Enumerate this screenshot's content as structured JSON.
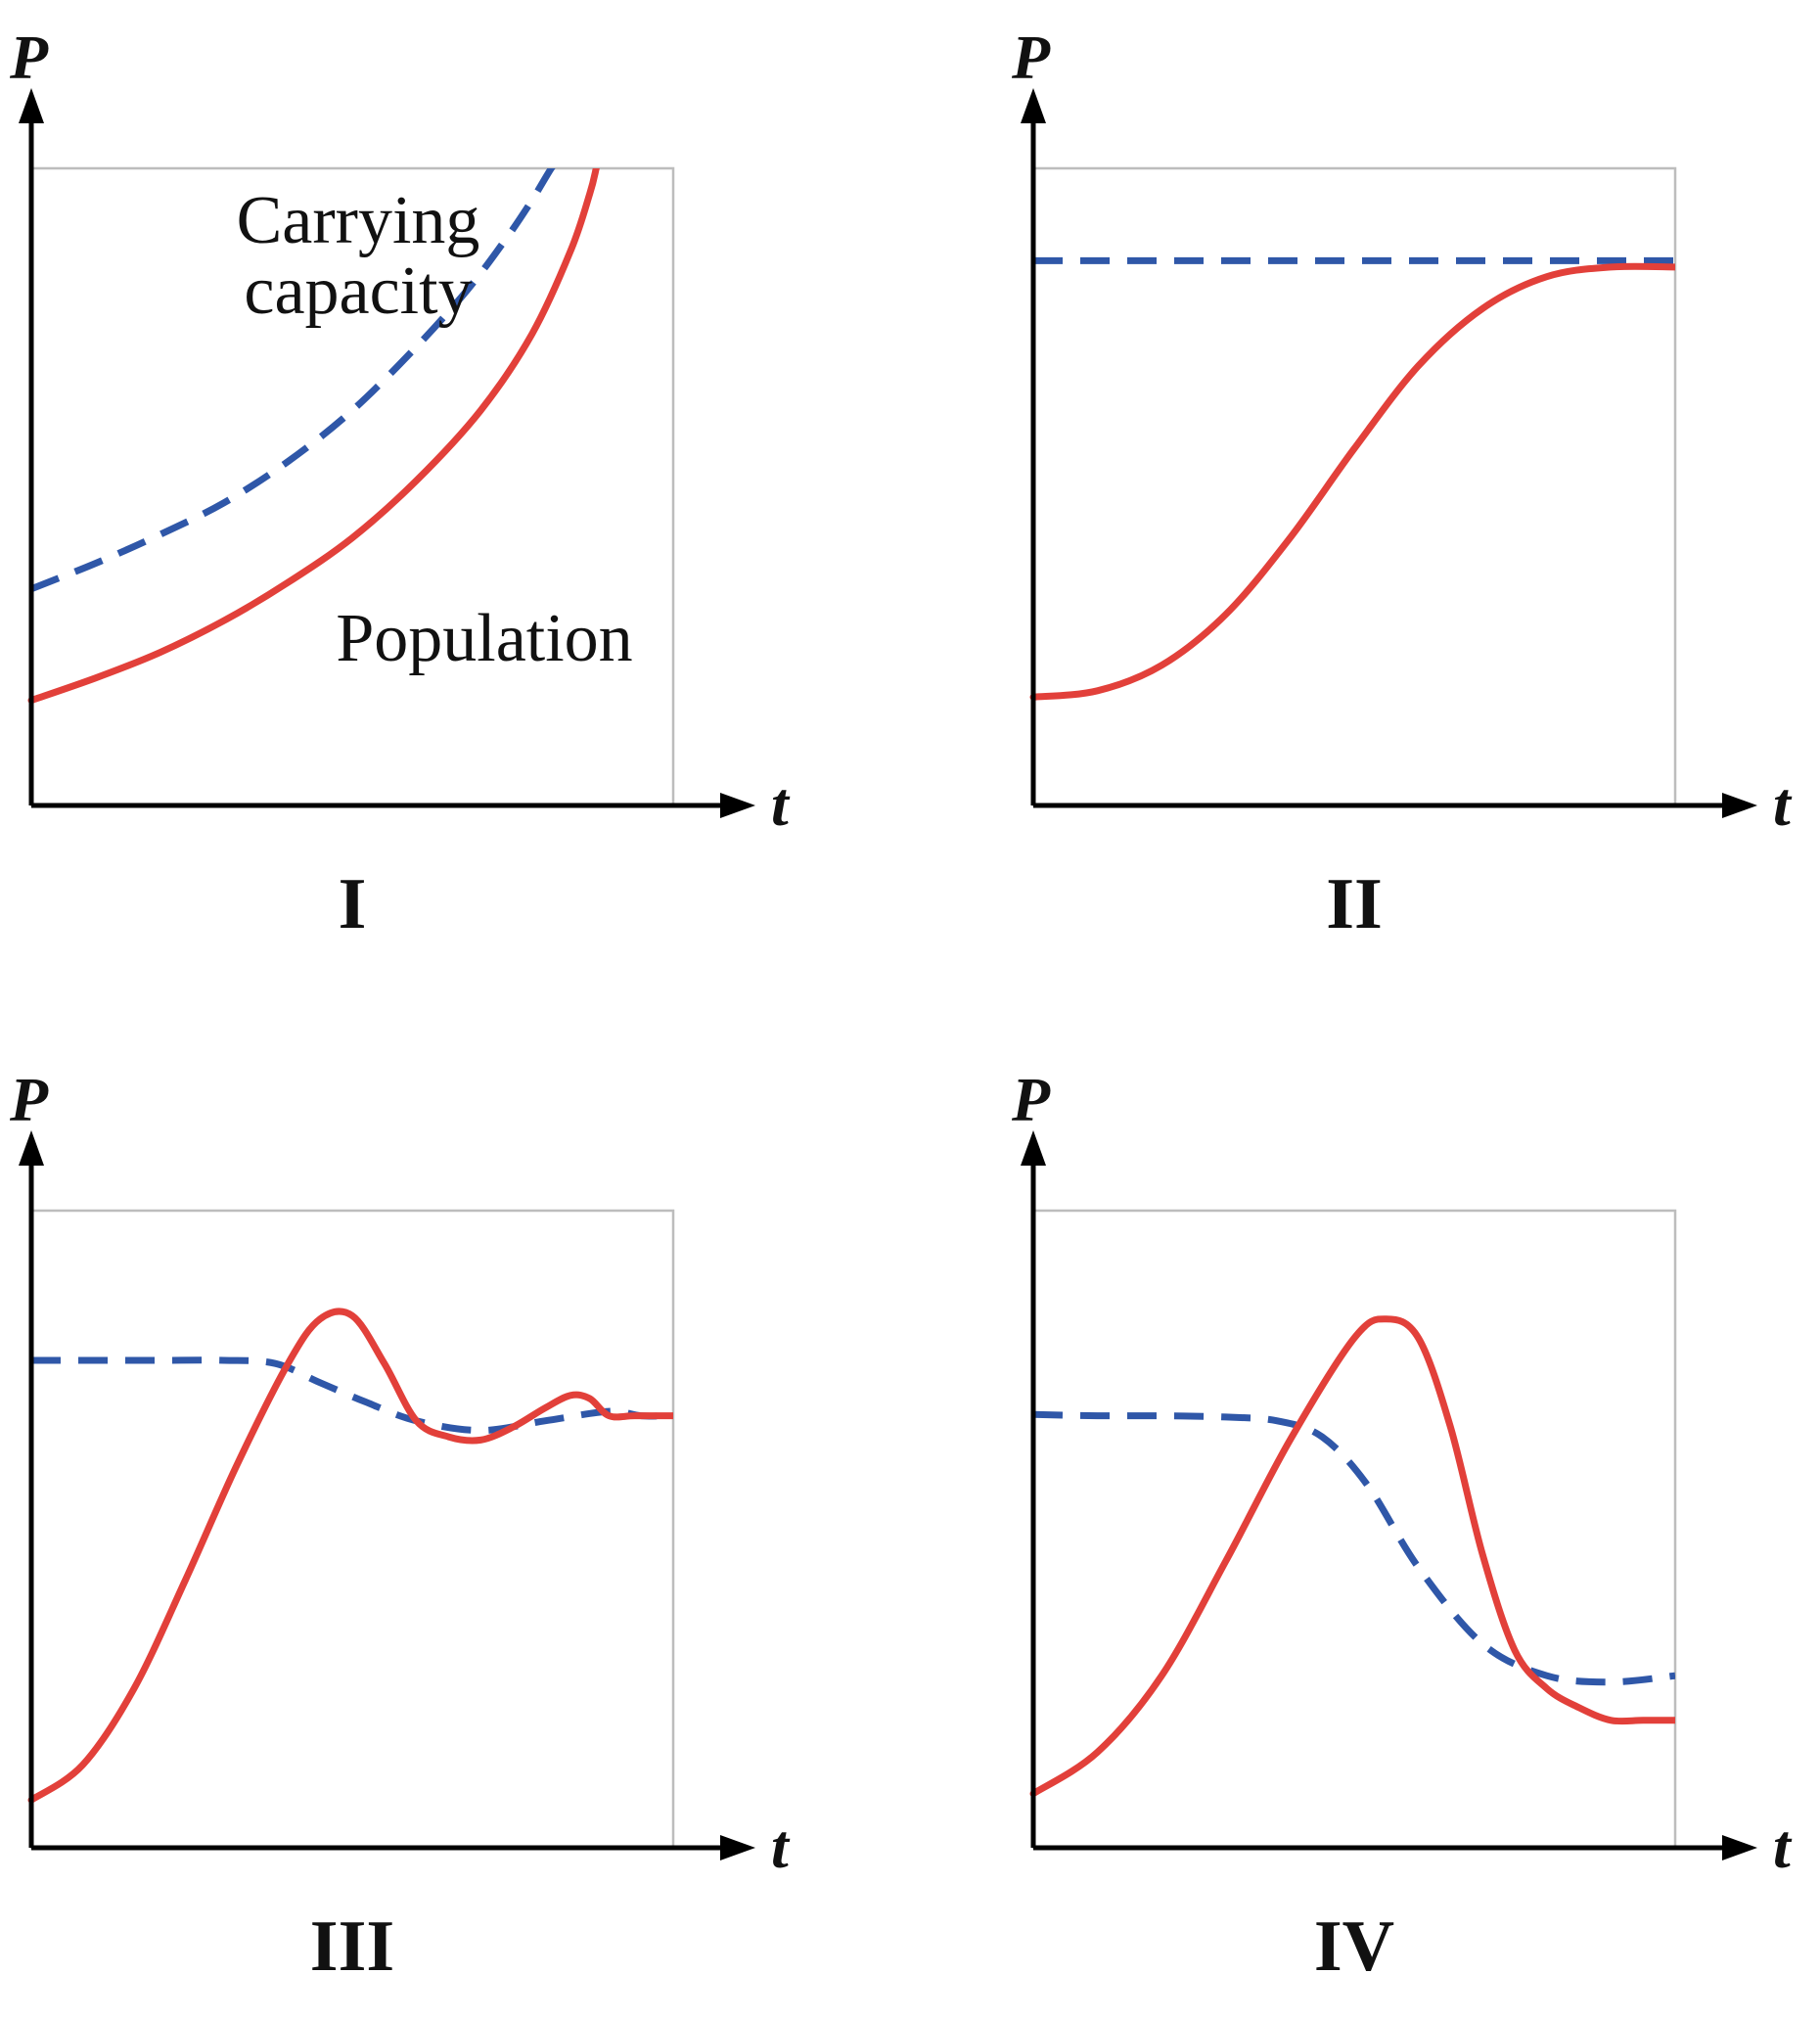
{
  "colors": {
    "population": "#e2403a",
    "carrying_capacity": "#2f57a8",
    "axis": "#000000",
    "frame": "#bdbdbd"
  },
  "chart_data": [
    {
      "id": "I",
      "type": "line",
      "panel_label": "I",
      "ylabel": "P",
      "xlabel": "t",
      "xlim": [
        0,
        1
      ],
      "ylim": [
        0,
        1
      ],
      "grid": false,
      "annotations": [
        {
          "text_lines": [
            "Carrying",
            "capacity"
          ],
          "refers_to": "carrying_capacity"
        },
        {
          "text_lines": [
            "Population"
          ],
          "refers_to": "population"
        }
      ],
      "series": [
        {
          "key": "carrying_capacity",
          "style": "dashed",
          "x": [
            0,
            0.1,
            0.2,
            0.3,
            0.4,
            0.5,
            0.6,
            0.68,
            0.74,
            0.78,
            0.81,
            0.825
          ],
          "y": [
            0.34,
            0.38,
            0.425,
            0.475,
            0.54,
            0.62,
            0.72,
            0.81,
            0.89,
            0.95,
            1.0,
            1.02
          ]
        },
        {
          "key": "population",
          "style": "solid",
          "x": [
            0,
            0.1,
            0.2,
            0.3,
            0.4,
            0.5,
            0.6,
            0.7,
            0.78,
            0.84,
            0.87,
            0.88
          ],
          "y": [
            0.165,
            0.2,
            0.24,
            0.29,
            0.35,
            0.42,
            0.51,
            0.62,
            0.74,
            0.87,
            0.96,
            1.0
          ]
        }
      ]
    },
    {
      "id": "II",
      "type": "line",
      "panel_label": "II",
      "ylabel": "P",
      "xlabel": "t",
      "xlim": [
        0,
        1
      ],
      "ylim": [
        0,
        1
      ],
      "grid": false,
      "series": [
        {
          "key": "carrying_capacity",
          "style": "dashed",
          "x": [
            0,
            1
          ],
          "y": [
            0.855,
            0.855
          ]
        },
        {
          "key": "population",
          "style": "solid",
          "x": [
            0,
            0.1,
            0.2,
            0.3,
            0.4,
            0.5,
            0.6,
            0.7,
            0.8,
            0.9,
            1.0
          ],
          "y": [
            0.17,
            0.18,
            0.22,
            0.3,
            0.42,
            0.56,
            0.69,
            0.78,
            0.83,
            0.845,
            0.845
          ]
        }
      ]
    },
    {
      "id": "III",
      "type": "line",
      "panel_label": "III",
      "ylabel": "P",
      "xlabel": "t",
      "xlim": [
        0,
        1
      ],
      "ylim": [
        0,
        1
      ],
      "grid": false,
      "series": [
        {
          "key": "carrying_capacity",
          "style": "dashed",
          "x": [
            0,
            0.1,
            0.2,
            0.3,
            0.38,
            0.45,
            0.52,
            0.6,
            0.7,
            0.8,
            0.9,
            0.95,
            1.0
          ],
          "y": [
            0.765,
            0.765,
            0.765,
            0.765,
            0.76,
            0.73,
            0.7,
            0.67,
            0.655,
            0.67,
            0.685,
            0.678,
            0.678
          ]
        },
        {
          "key": "population",
          "style": "solid",
          "x": [
            0,
            0.08,
            0.16,
            0.24,
            0.32,
            0.4,
            0.45,
            0.5,
            0.55,
            0.6,
            0.65,
            0.7,
            0.75,
            0.8,
            0.84,
            0.87,
            0.9,
            0.94,
            1.0
          ],
          "y": [
            0.075,
            0.13,
            0.25,
            0.42,
            0.6,
            0.76,
            0.83,
            0.835,
            0.76,
            0.67,
            0.645,
            0.64,
            0.66,
            0.69,
            0.71,
            0.705,
            0.678,
            0.678,
            0.678
          ]
        }
      ]
    },
    {
      "id": "IV",
      "type": "line",
      "panel_label": "IV",
      "ylabel": "P",
      "xlabel": "t",
      "xlim": [
        0,
        1
      ],
      "ylim": [
        0,
        1
      ],
      "grid": false,
      "series": [
        {
          "key": "carrying_capacity",
          "style": "dashed",
          "x": [
            0,
            0.1,
            0.2,
            0.3,
            0.38,
            0.45,
            0.52,
            0.6,
            0.7,
            0.8,
            0.9,
            1.0
          ],
          "y": [
            0.68,
            0.678,
            0.678,
            0.676,
            0.67,
            0.645,
            0.57,
            0.44,
            0.32,
            0.27,
            0.26,
            0.27
          ]
        },
        {
          "key": "population",
          "style": "solid",
          "x": [
            0,
            0.1,
            0.2,
            0.3,
            0.4,
            0.5,
            0.55,
            0.6,
            0.65,
            0.7,
            0.75,
            0.8,
            0.85,
            0.9,
            0.95,
            1.0
          ],
          "y": [
            0.085,
            0.15,
            0.27,
            0.45,
            0.64,
            0.8,
            0.83,
            0.8,
            0.66,
            0.46,
            0.31,
            0.25,
            0.22,
            0.2,
            0.2,
            0.2
          ]
        }
      ]
    }
  ]
}
